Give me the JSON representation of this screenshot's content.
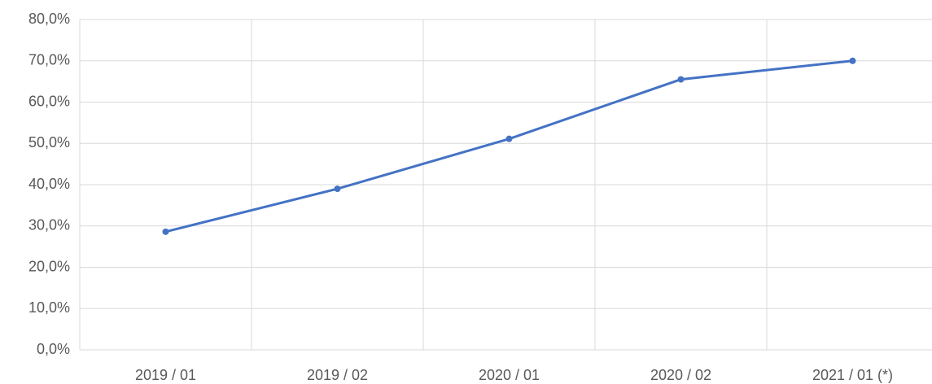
{
  "chart_data": {
    "type": "line",
    "categories": [
      "2019 / 01",
      "2019 / 02",
      "2020 / 01",
      "2020 / 02",
      "2021 / 01 (*)"
    ],
    "values": [
      28.6,
      39.0,
      51.1,
      65.5,
      70.0
    ],
    "color": "#4472c4",
    "ylim": [
      0,
      80
    ],
    "yticks": [
      {
        "value": 0,
        "label": "0,0%"
      },
      {
        "value": 10,
        "label": "10,0%"
      },
      {
        "value": 20,
        "label": "20,0%"
      },
      {
        "value": 30,
        "label": "30,0%"
      },
      {
        "value": 40,
        "label": "40,0%"
      },
      {
        "value": 50,
        "label": "50,0%"
      },
      {
        "value": 60,
        "label": "60,0%"
      },
      {
        "value": 70,
        "label": "70,0%"
      },
      {
        "value": 80,
        "label": "80,0%"
      }
    ],
    "grid": true,
    "markers": true
  }
}
